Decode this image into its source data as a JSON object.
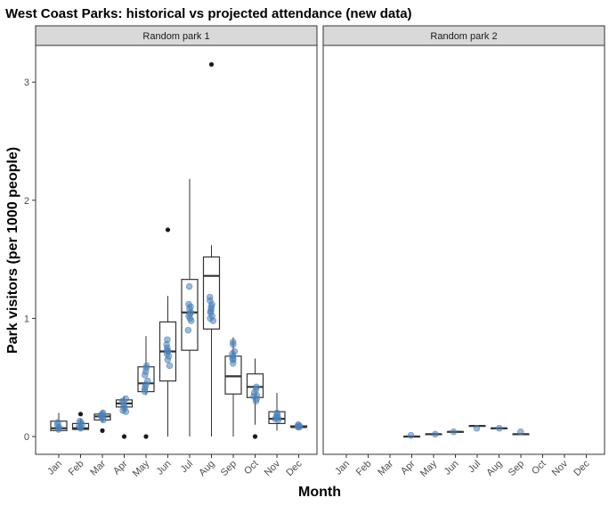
{
  "chart_data": {
    "type": "boxplot-with-points",
    "title": "West Coast Parks: historical vs projected attendance (new data)",
    "xlabel": "Month",
    "ylabel": "Park visitors (per 1000 people)",
    "ylim": [
      -0.15,
      3.3
    ],
    "yticks": [
      0,
      1,
      2,
      3
    ],
    "categories": [
      "Jan",
      "Feb",
      "Mar",
      "Apr",
      "May",
      "Jun",
      "Jul",
      "Aug",
      "Sep",
      "Oct",
      "Nov",
      "Dec"
    ],
    "colors": {
      "points": "#4a7fb8",
      "box_stroke": "#333333",
      "outlier": "#1a1a1a",
      "strip_fill": "#d9d9d9",
      "strip_stroke": "#333333",
      "panel_border": "#333333"
    },
    "panels": [
      {
        "label": "Random park 1",
        "boxes": [
          {
            "month": "Jan",
            "q1": 0.05,
            "median": 0.07,
            "q3": 0.13,
            "whisker_low": 0.05,
            "whisker_high": 0.2,
            "outliers": [],
            "points": [
              0.07,
              0.08,
              0.1,
              0.12,
              0.06
            ]
          },
          {
            "month": "Feb",
            "q1": 0.06,
            "median": 0.07,
            "q3": 0.11,
            "whisker_low": 0.05,
            "whisker_high": 0.15,
            "outliers": [
              0.19
            ],
            "points": [
              0.07,
              0.09,
              0.1,
              0.12,
              0.08,
              0.13
            ]
          },
          {
            "month": "Mar",
            "q1": 0.14,
            "median": 0.17,
            "q3": 0.19,
            "whisker_low": 0.12,
            "whisker_high": 0.22,
            "outliers": [
              0.05
            ],
            "points": [
              0.14,
              0.16,
              0.18,
              0.19,
              0.17,
              0.2
            ]
          },
          {
            "month": "Apr",
            "q1": 0.25,
            "median": 0.28,
            "q3": 0.31,
            "whisker_low": 0.22,
            "whisker_high": 0.34,
            "outliers": [
              0.0
            ],
            "points": [
              0.22,
              0.24,
              0.26,
              0.28,
              0.3,
              0.32,
              0.21
            ]
          },
          {
            "month": "May",
            "q1": 0.38,
            "median": 0.45,
            "q3": 0.59,
            "whisker_low": 0.35,
            "whisker_high": 0.85,
            "outliers": [
              0.0
            ],
            "points": [
              0.4,
              0.44,
              0.47,
              0.52,
              0.55,
              0.58,
              0.6,
              0.42,
              0.38
            ]
          },
          {
            "month": "Jun",
            "q1": 0.47,
            "median": 0.72,
            "q3": 0.97,
            "whisker_low": 0.0,
            "whisker_high": 1.19,
            "outliers": [
              1.75
            ],
            "points": [
              0.6,
              0.65,
              0.7,
              0.72,
              0.75,
              0.78,
              0.68,
              0.73,
              0.82
            ]
          },
          {
            "month": "Jul",
            "q1": 0.73,
            "median": 1.05,
            "q3": 1.33,
            "whisker_low": 0.0,
            "whisker_high": 2.18,
            "outliers": [],
            "points": [
              0.9,
              0.98,
              1.02,
              1.05,
              1.08,
              1.12,
              1.0,
              1.27,
              1.1,
              1.04
            ]
          },
          {
            "month": "Aug",
            "q1": 0.91,
            "median": 1.36,
            "q3": 1.52,
            "whisker_low": 0.0,
            "whisker_high": 1.62,
            "outliers": [
              3.15
            ],
            "points": [
              1.0,
              1.05,
              1.1,
              1.15,
              1.18,
              1.08,
              1.02,
              1.12,
              0.98,
              1.06
            ]
          },
          {
            "month": "Sep",
            "q1": 0.36,
            "median": 0.51,
            "q3": 0.68,
            "whisker_low": 0.0,
            "whisker_high": 0.84,
            "outliers": [],
            "points": [
              0.62,
              0.65,
              0.68,
              0.72,
              0.78,
              0.8,
              0.66,
              0.7
            ]
          },
          {
            "month": "Oct",
            "q1": 0.33,
            "median": 0.42,
            "q3": 0.53,
            "whisker_low": 0.1,
            "whisker_high": 0.66,
            "outliers": [
              0.0
            ],
            "points": [
              0.3,
              0.34,
              0.37,
              0.4,
              0.42,
              0.35,
              0.32
            ]
          },
          {
            "month": "Nov",
            "q1": 0.11,
            "median": 0.15,
            "q3": 0.21,
            "whisker_low": 0.05,
            "whisker_high": 0.37,
            "outliers": [],
            "points": [
              0.14,
              0.16,
              0.18,
              0.2,
              0.15,
              0.17
            ]
          },
          {
            "month": "Dec",
            "q1": 0.08,
            "median": 0.08,
            "q3": 0.09,
            "whisker_low": 0.07,
            "whisker_high": 0.1,
            "outliers": [],
            "points": [
              0.08,
              0.09,
              0.1,
              0.08,
              0.09
            ]
          }
        ]
      },
      {
        "label": "Random park 2",
        "boxes": [
          {
            "month": "Apr",
            "q1": 0.0,
            "median": 0.0,
            "q3": 0.0,
            "whisker_low": 0.0,
            "whisker_high": 0.0,
            "outliers": [],
            "points": [
              0.01
            ]
          },
          {
            "month": "May",
            "q1": 0.02,
            "median": 0.02,
            "q3": 0.02,
            "whisker_low": 0.02,
            "whisker_high": 0.02,
            "outliers": [],
            "points": [
              0.02
            ]
          },
          {
            "month": "Jun",
            "q1": 0.04,
            "median": 0.04,
            "q3": 0.04,
            "whisker_low": 0.04,
            "whisker_high": 0.04,
            "outliers": [],
            "points": [
              0.04
            ]
          },
          {
            "month": "Jul",
            "q1": 0.09,
            "median": 0.09,
            "q3": 0.09,
            "whisker_low": 0.09,
            "whisker_high": 0.09,
            "outliers": [],
            "points": [
              0.07
            ]
          },
          {
            "month": "Aug",
            "q1": 0.07,
            "median": 0.07,
            "q3": 0.07,
            "whisker_low": 0.07,
            "whisker_high": 0.07,
            "outliers": [],
            "points": [
              0.07
            ]
          },
          {
            "month": "Sep",
            "q1": 0.02,
            "median": 0.02,
            "q3": 0.02,
            "whisker_low": 0.02,
            "whisker_high": 0.02,
            "outliers": [],
            "points": [
              0.04
            ]
          }
        ]
      }
    ]
  }
}
